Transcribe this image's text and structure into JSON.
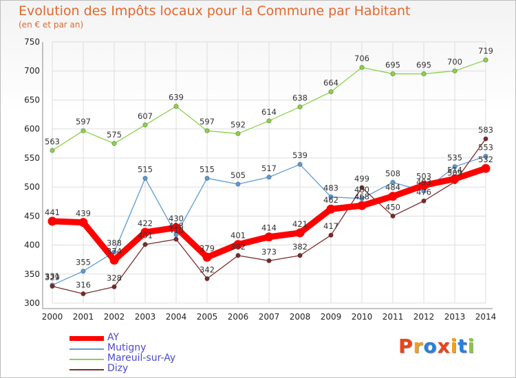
{
  "title": "Evolution des Impôts locaux pour la Commune par Habitant",
  "subtitle": "(en € et par an)",
  "logo": {
    "text": "Proxiti",
    "letters": [
      {
        "ch": "P",
        "color": "#e8441d"
      },
      {
        "ch": "r",
        "color": "#f0a020"
      },
      {
        "ch": "o",
        "color": "#2c7fd6"
      },
      {
        "ch": "x",
        "color": "#e8441d"
      },
      {
        "ch": "i",
        "color": "#f0a020"
      },
      {
        "ch": "t",
        "color": "#2c7fd6"
      },
      {
        "ch": "i",
        "color": "#8cc63f"
      }
    ]
  },
  "chart_data": {
    "type": "line",
    "title": "Evolution des Impôts locaux pour la Commune par Habitant",
    "subtitle": "(en € et par an)",
    "xlabel": "",
    "ylabel": "",
    "x": [
      "2000",
      "2001",
      "2002",
      "2003",
      "2004",
      "2005",
      "2006",
      "2007",
      "2008",
      "2009",
      "2010",
      "2011",
      "2012",
      "2013",
      "2014"
    ],
    "ylim": [
      300,
      750
    ],
    "yticks": [
      300,
      350,
      400,
      450,
      500,
      550,
      600,
      650,
      700,
      750
    ],
    "grid": true,
    "legend_position": "bottom-left",
    "series": [
      {
        "name": "AY",
        "color": "#ff0000",
        "values": [
          441,
          439,
          374,
          422,
          430,
          379,
          401,
          414,
          421,
          462,
          468,
          484,
          503,
          514,
          532
        ],
        "labels": [
          "441",
          "439",
          "374",
          "422",
          "430",
          "379",
          "401",
          "414",
          "421",
          "462",
          "468",
          "484",
          "503",
          "514",
          "532"
        ]
      },
      {
        "name": "Mutigny",
        "color": "#5b9bd5",
        "values": [
          331,
          355,
          388,
          515,
          418,
          515,
          505,
          517,
          539,
          483,
          480,
          508,
          493,
          535,
          553
        ],
        "labels": [
          "331",
          "355",
          "388",
          "515",
          "418",
          "515",
          "505",
          "517",
          "539",
          "483",
          "480",
          "508",
          "493",
          "535",
          "553"
        ]
      },
      {
        "name": "Mareuil-sur-Ay",
        "color": "#8cd14a",
        "values": [
          563,
          597,
          575,
          607,
          639,
          597,
          592,
          614,
          638,
          664,
          706,
          695,
          695,
          700,
          719
        ],
        "labels": [
          "563",
          "597",
          "575",
          "607",
          "639",
          "597",
          "592",
          "614",
          "638",
          "664",
          "706",
          "695",
          "695",
          "700",
          "719"
        ]
      },
      {
        "name": "Dizy",
        "color": "#7a2a2a",
        "values": [
          329,
          316,
          328,
          401,
          410,
          342,
          382,
          373,
          382,
          417,
          499,
          450,
          476,
          509,
          583
        ],
        "labels": [
          "329",
          "316",
          "328",
          "401",
          "410",
          "342",
          "382",
          "373",
          "382",
          "417",
          "499",
          "450",
          "476",
          "509",
          "583"
        ]
      }
    ]
  }
}
